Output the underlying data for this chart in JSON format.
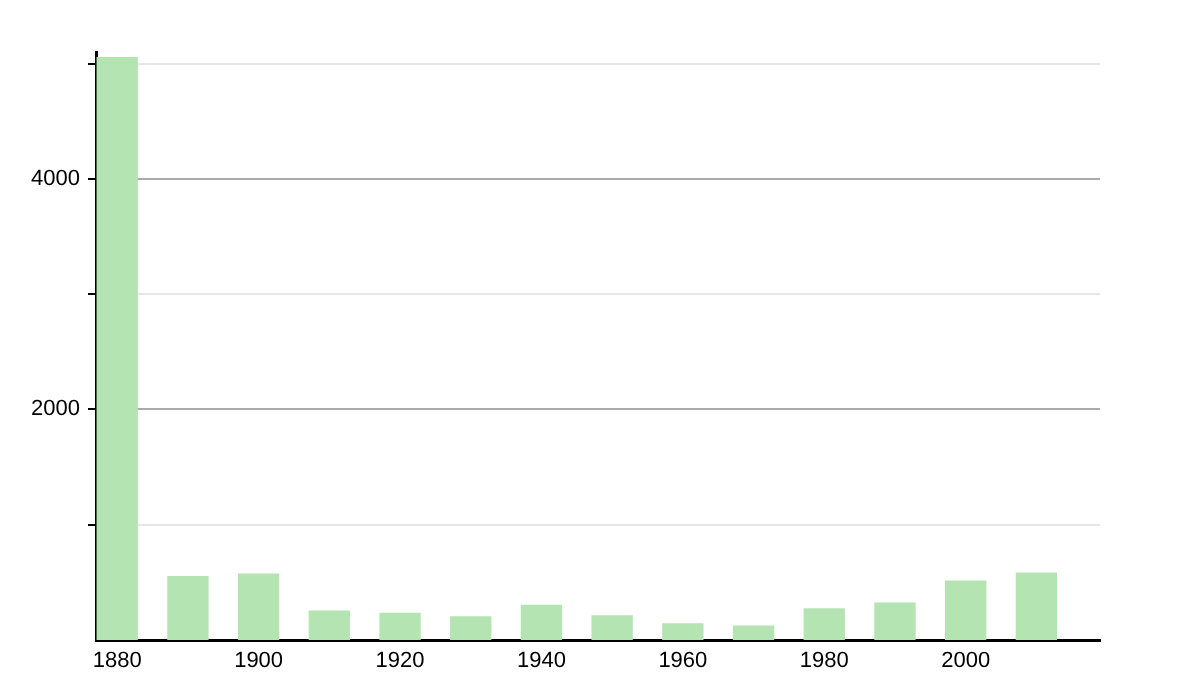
{
  "chart_data": {
    "type": "bar",
    "x": [
      1880,
      1890,
      1900,
      1910,
      1920,
      1930,
      1940,
      1950,
      1960,
      1970,
      1980,
      1990,
      2000,
      2010
    ],
    "values": [
      5050,
      550,
      570,
      250,
      230,
      200,
      300,
      210,
      140,
      120,
      270,
      320,
      510,
      580
    ],
    "color": "#b3e4b1",
    "xlim": [
      1877,
      2019
    ],
    "xticks": [
      1880,
      1900,
      1920,
      1940,
      1960,
      1980,
      2000
    ],
    "ylim": [
      0,
      5100
    ],
    "yticks": [
      {
        "value": 1000,
        "label": null
      },
      2000,
      {
        "value": 3000,
        "label": null
      },
      4000,
      {
        "value": 5000,
        "label": null
      }
    ],
    "grid": "y",
    "legend": false
  }
}
